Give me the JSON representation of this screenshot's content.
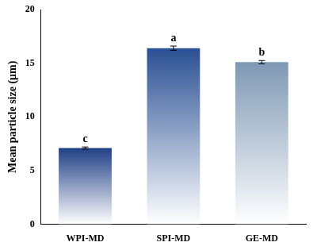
{
  "chart_data": {
    "type": "bar",
    "y_label": "Mean particle size (μm)",
    "categories": [
      "WPI-MD",
      "SPI-MD",
      "GE-MD"
    ],
    "values": [
      7.1,
      16.4,
      15.1
    ],
    "errors": [
      0.1,
      0.2,
      0.15
    ],
    "annotations": [
      "c",
      "a",
      "b"
    ],
    "colors": [
      "#1f3f86",
      "#2a4f93",
      "#7f98b4"
    ],
    "ylim": [
      0,
      20
    ],
    "yticks": [
      0,
      5,
      10,
      15,
      20
    ],
    "grid": false
  }
}
